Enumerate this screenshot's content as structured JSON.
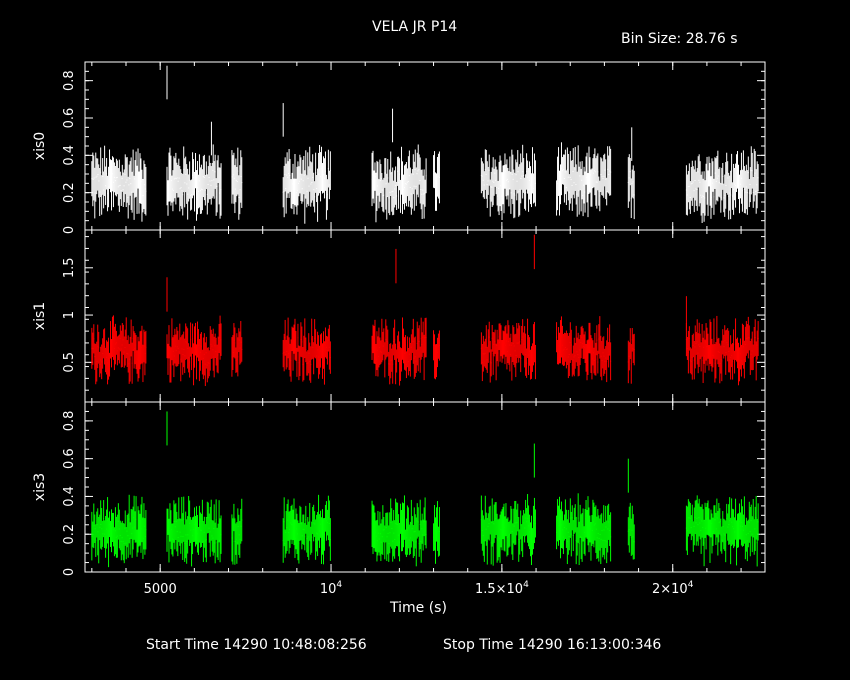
{
  "header": {
    "title": "VELA JR P14",
    "bin_size": "Bin Size: 28.76 s"
  },
  "footer": {
    "start_time": "Start Time 14290 10:48:08:256",
    "stop_time": "Stop Time 14290 16:13:00:346"
  },
  "colors": {
    "xis0": "#ffffff",
    "xis1": "#ff0000",
    "xis3": "#00ff00",
    "frame": "#ffffff",
    "background": "#000000"
  },
  "chart_data": {
    "type": "scatter",
    "title": "VELA JR P14",
    "xlabel": "Time (s)",
    "xlim": [
      2800,
      22700
    ],
    "x_ticks": [
      {
        "value": 5000,
        "label": "5000"
      },
      {
        "value": 10000,
        "label": "10",
        "sup": "4"
      },
      {
        "value": 15000,
        "label": "1.5×10",
        "sup": "4"
      },
      {
        "value": 20000,
        "label": "2×10",
        "sup": "4"
      }
    ],
    "segments": [
      [
        3000,
        4600
      ],
      [
        5200,
        6800
      ],
      [
        7100,
        7400
      ],
      [
        8600,
        10000
      ],
      [
        11200,
        12800
      ],
      [
        13000,
        13200
      ],
      [
        14400,
        16000
      ],
      [
        16600,
        18200
      ],
      [
        18700,
        18900
      ],
      [
        20400,
        22500
      ]
    ],
    "panels": [
      {
        "name": "xis0",
        "ylabel": "xis0",
        "color": "#ffffff",
        "ylim": [
          0,
          0.9
        ],
        "yticks": [
          0,
          0.2,
          0.4,
          0.6,
          0.8
        ],
        "ytick_labels": [
          "0",
          "0.2",
          "0.4",
          "0.6",
          "0.8"
        ],
        "base": 0.25,
        "noise": 0.08,
        "err": 0.12,
        "spikes": [
          {
            "x": 5200,
            "y": 0.88
          },
          {
            "x": 6500,
            "y": 0.58
          },
          {
            "x": 8600,
            "y": 0.68
          },
          {
            "x": 11800,
            "y": 0.65
          },
          {
            "x": 18800,
            "y": 0.55
          }
        ]
      },
      {
        "name": "xis1",
        "ylabel": "xis1",
        "color": "#ff0000",
        "ylim": [
          0.08,
          1.9
        ],
        "yticks": [
          0.5,
          1,
          1.5
        ],
        "ytick_labels": [
          "0.5",
          "1",
          "1.5"
        ],
        "base": 0.62,
        "noise": 0.15,
        "err": 0.2,
        "spikes": [
          {
            "x": 5200,
            "y": 1.4
          },
          {
            "x": 11900,
            "y": 1.7
          },
          {
            "x": 15950,
            "y": 1.85
          },
          {
            "x": 20400,
            "y": 1.2
          }
        ]
      },
      {
        "name": "xis3",
        "ylabel": "xis3",
        "color": "#00ff00",
        "ylim": [
          0,
          0.9
        ],
        "yticks": [
          0,
          0.2,
          0.4,
          0.6,
          0.8
        ],
        "ytick_labels": [
          "0",
          "0.2",
          "0.4",
          "0.6",
          "0.8"
        ],
        "base": 0.22,
        "noise": 0.07,
        "err": 0.11,
        "spikes": [
          {
            "x": 5200,
            "y": 0.85
          },
          {
            "x": 15950,
            "y": 0.68
          },
          {
            "x": 18700,
            "y": 0.6
          }
        ]
      }
    ]
  }
}
